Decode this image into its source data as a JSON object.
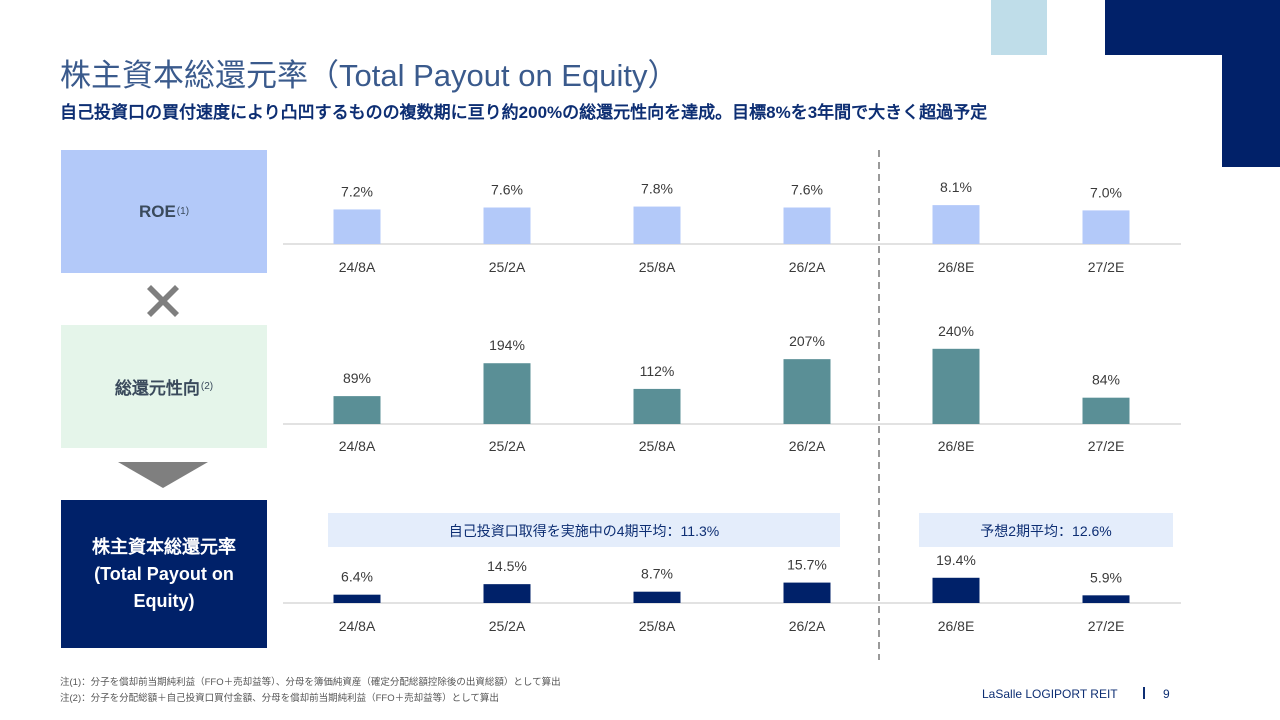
{
  "title": "株主資本総還元率（Total Payout on Equity）",
  "subtitle": "自己投資口の買付速度により凸凹するものの複数期に亘り約200%の総還元性向を達成。目標8%を3年間で大きく超過予定",
  "boxes": {
    "roe": {
      "label": "ROE",
      "note": "(1)"
    },
    "payout": {
      "label": "総還元性向",
      "note": "(2)"
    },
    "tpoe": {
      "line1": "株主資本総還元率",
      "line2": "(Total Payout on",
      "line3": "Equity)"
    }
  },
  "colors": {
    "roe_bar": "#b3c9f9",
    "payout_bar": "#5a8f96",
    "tpoe_bar": "#002169",
    "navy": "#012169",
    "light_blue": "#bfdde9",
    "avg_band": "#e4edfb"
  },
  "chart_data": [
    {
      "type": "bar",
      "id": "roe",
      "title": "ROE",
      "categories": [
        "24/8A",
        "25/2A",
        "25/8A",
        "26/2A",
        "26/8E",
        "27/2E"
      ],
      "values": [
        7.2,
        7.6,
        7.8,
        7.6,
        8.1,
        7.0
      ],
      "labels": [
        "7.2%",
        "7.6%",
        "7.8%",
        "7.6%",
        "8.1%",
        "7.0%"
      ],
      "unit": "%"
    },
    {
      "type": "bar",
      "id": "payout",
      "title": "総還元性向",
      "categories": [
        "24/8A",
        "25/2A",
        "25/8A",
        "26/2A",
        "26/8E",
        "27/2E"
      ],
      "values": [
        89,
        194,
        112,
        207,
        240,
        84
      ],
      "labels": [
        "89%",
        "194%",
        "112%",
        "207%",
        "240%",
        "84%"
      ],
      "unit": "%"
    },
    {
      "type": "bar",
      "id": "tpoe",
      "title": "株主資本総還元率 (Total Payout on Equity)",
      "categories": [
        "24/8A",
        "25/2A",
        "25/8A",
        "26/2A",
        "26/8E",
        "27/2E"
      ],
      "values": [
        6.4,
        14.5,
        8.7,
        15.7,
        19.4,
        5.9
      ],
      "labels": [
        "6.4%",
        "14.5%",
        "8.7%",
        "15.7%",
        "19.4%",
        "5.9%"
      ],
      "unit": "%",
      "annotations": [
        "自己投資口取得を実施中の4期平均：11.3%",
        "予想2期平均：12.6%"
      ]
    }
  ],
  "notes": [
    "注(1)：分子を償却前当期純利益（FFO＋売却益等）、分母を簿価純資産（確定分配総額控除後の出資総額）として算出",
    "注(2)：分子を分配総額＋自己投資口買付金額、分母を償却前当期純利益（FFO＋売却益等）として算出"
  ],
  "footer": {
    "brand": "LaSalle LOGIPORT REIT",
    "page": "9"
  }
}
